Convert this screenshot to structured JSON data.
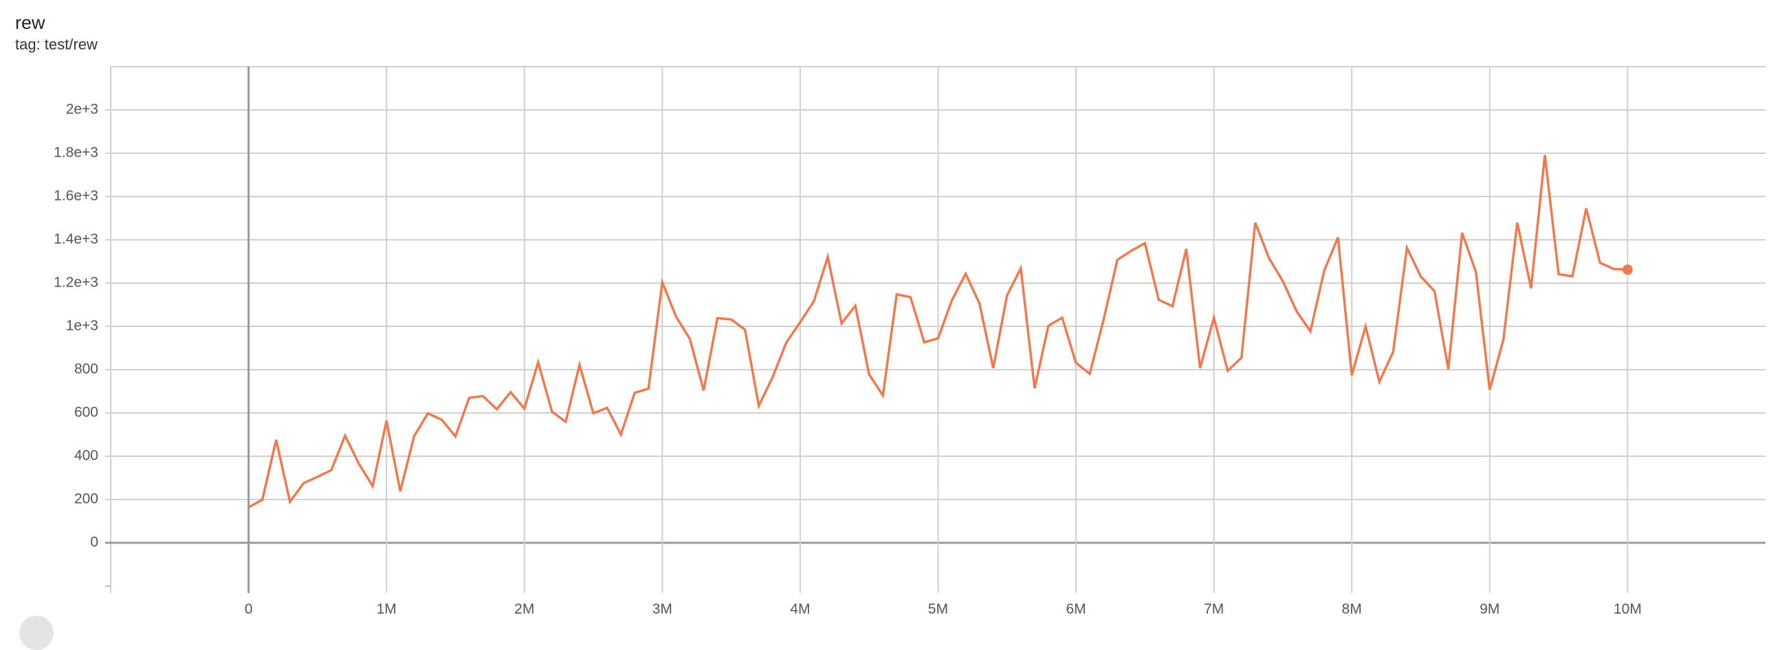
{
  "card": {
    "title": "rew",
    "tag": "tag: test/rew"
  },
  "chart_data": {
    "type": "line",
    "title": "rew",
    "xlabel": "",
    "ylabel": "",
    "xlim": [
      -1000000,
      11000000
    ],
    "ylim": [
      -200,
      2200
    ],
    "grid": true,
    "legend": "none",
    "color": "#ef7a4f",
    "x_ticks": [
      {
        "value": 0,
        "label": "0"
      },
      {
        "value": 1000000,
        "label": "1M"
      },
      {
        "value": 2000000,
        "label": "2M"
      },
      {
        "value": 3000000,
        "label": "3M"
      },
      {
        "value": 4000000,
        "label": "4M"
      },
      {
        "value": 5000000,
        "label": "5M"
      },
      {
        "value": 6000000,
        "label": "6M"
      },
      {
        "value": 7000000,
        "label": "7M"
      },
      {
        "value": 8000000,
        "label": "8M"
      },
      {
        "value": 9000000,
        "label": "9M"
      },
      {
        "value": 10000000,
        "label": "10M"
      }
    ],
    "y_ticks": [
      {
        "value": 0,
        "label": "0"
      },
      {
        "value": 200,
        "label": "200"
      },
      {
        "value": 400,
        "label": "400"
      },
      {
        "value": 600,
        "label": "600"
      },
      {
        "value": 800,
        "label": "800"
      },
      {
        "value": 1000,
        "label": "1e+3"
      },
      {
        "value": 1200,
        "label": "1.2e+3"
      },
      {
        "value": 1400,
        "label": "1.4e+3"
      },
      {
        "value": 1600,
        "label": "1.6e+3"
      },
      {
        "value": 1800,
        "label": "1.8e+3"
      },
      {
        "value": 2000,
        "label": "2e+3"
      }
    ],
    "x_step": 100000,
    "values": [
      164,
      199,
      476,
      190,
      276,
      305,
      336,
      495,
      365,
      262,
      564,
      238,
      492,
      598,
      569,
      492,
      670,
      678,
      617,
      696,
      620,
      834,
      606,
      559,
      823,
      598,
      624,
      500,
      693,
      712,
      1204,
      1045,
      942,
      704,
      1038,
      1032,
      985,
      633,
      765,
      926,
      1019,
      1117,
      1321,
      1014,
      1095,
      778,
      681,
      1148,
      1135,
      926,
      945,
      1120,
      1243,
      1106,
      807,
      1143,
      1268,
      714,
      1003,
      1040,
      831,
      781,
      1030,
      1307,
      1349,
      1384,
      1123,
      1093,
      1358,
      807,
      1040,
      795,
      855,
      1479,
      1315,
      1209,
      1070,
      977,
      1257,
      1411,
      774,
      1000,
      744,
      882,
      1363,
      1231,
      1162,
      802,
      1432,
      1252,
      707,
      940,
      1479,
      1176,
      1792,
      1241,
      1231,
      1545,
      1294,
      1265,
      1262
    ]
  }
}
